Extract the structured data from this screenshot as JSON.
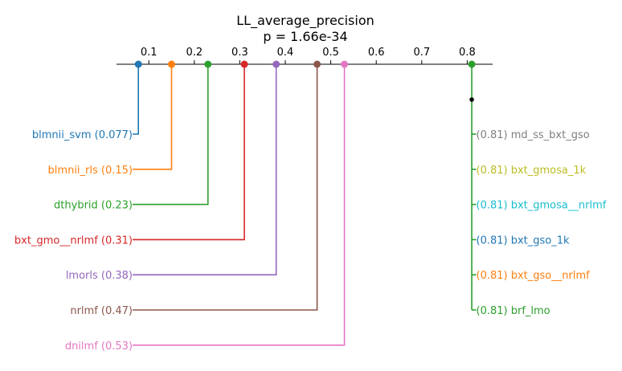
{
  "chart_data": {
    "type": "critical-difference",
    "title": "LL_average_precision",
    "subtitle": "p = 1.66e-34",
    "axis": {
      "ticks": [
        0.1,
        0.2,
        0.3,
        0.4,
        0.5,
        0.6,
        0.7,
        0.8
      ],
      "tick_labels": [
        "0.1",
        "0.2",
        "0.3",
        "0.4",
        "0.5",
        "0.6",
        "0.7",
        "0.8"
      ],
      "range": [
        -0.05,
        0.855
      ],
      "position": "top"
    },
    "left_items": [
      {
        "name": "blmnii_svm",
        "value": 0.077,
        "label": "blmnii_svm (0.077)",
        "color": "#1f77b4"
      },
      {
        "name": "blmnii_rls",
        "value": 0.15,
        "label": "blmnii_rls (0.15)",
        "color": "#ff7f0e"
      },
      {
        "name": "dthybrid",
        "value": 0.23,
        "label": "dthybrid (0.23)",
        "color": "#2ca02c"
      },
      {
        "name": "bxt_gmo__nrlmf",
        "value": 0.31,
        "label": "bxt_gmo__nrlmf (0.31)",
        "color": "#d62728"
      },
      {
        "name": "lmorls",
        "value": 0.38,
        "label": "lmorls (0.38)",
        "color": "#9467bd"
      },
      {
        "name": "nrlmf",
        "value": 0.47,
        "label": "nrlmf (0.47)",
        "color": "#8c564b"
      },
      {
        "name": "dnilmf",
        "value": 0.53,
        "label": "dnilmf (0.53)",
        "color": "#e377c2"
      }
    ],
    "right_items": [
      {
        "name": "md_ss_bxt_gso",
        "value": 0.81,
        "label": "(0.81) md_ss_bxt_gso",
        "color": "#7f7f7f"
      },
      {
        "name": "bxt_gmosa_1k",
        "value": 0.81,
        "label": "(0.81) bxt_gmosa_1k",
        "color": "#bcbd22"
      },
      {
        "name": "bxt_gmosa__nrlmf",
        "value": 0.81,
        "label": "(0.81) bxt_gmosa__nrlmf",
        "color": "#17becf"
      },
      {
        "name": "bxt_gso_1k",
        "value": 0.81,
        "label": "(0.81) bxt_gso_1k",
        "color": "#1f77b4"
      },
      {
        "name": "bxt_gso__nrlmf",
        "value": 0.81,
        "label": "(0.81) bxt_gso__nrlmf",
        "color": "#ff7f0e"
      },
      {
        "name": "brf_lmo",
        "value": 0.81,
        "label": "(0.81) brf_lmo",
        "color": "#2ca02c"
      }
    ],
    "right_group_color": "#2ca02c",
    "grid": false
  }
}
